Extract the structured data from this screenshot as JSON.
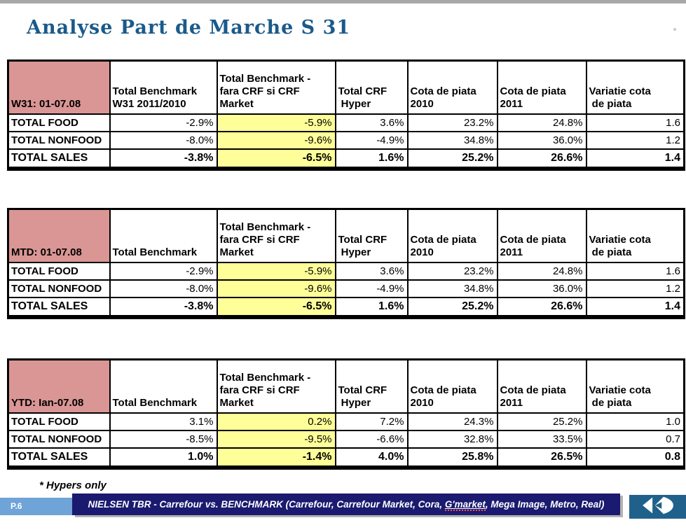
{
  "slide": {
    "title": "Analyse Part de Marche S 31",
    "footnote": "* Hypers only"
  },
  "footer": {
    "page_label": "P.6",
    "banner_prefix": "NIELSEN TBR - Carrefour vs. BENCHMARK (Carrefour, Carrefour Market, Cora, ",
    "banner_highlight": "G'market",
    "banner_suffix": ", Mega Image, Metro, Real)"
  },
  "colors": {
    "title_blue": "#1A5A8A",
    "header_pink": "#D99694",
    "highlight_yellow": "#FFFF99",
    "banner_navy": "#1A1A70",
    "page_bar_blue": "#6FA4D8",
    "logo_bar_blue": "#20618C"
  },
  "tables": [
    {
      "period_label": "W31: 01-07.08",
      "column_headers": [
        "Total Benchmark\nW31 2011/2010",
        "Total Benchmark -\nfara CRF si CRF\nMarket",
        "Total CRF\n Hyper",
        "Cota de piata\n2010",
        "Cota de piata\n2011",
        "Variatie cota\n de piata"
      ],
      "rows": [
        {
          "label": "TOTAL FOOD",
          "values": [
            "-2.9%",
            "-5.9%",
            "3.6%",
            "23.2%",
            "24.8%",
            "1.6"
          ],
          "bold": false
        },
        {
          "label": "TOTAL NONFOOD",
          "values": [
            "-8.0%",
            "-9.6%",
            "-4.9%",
            "34.8%",
            "36.0%",
            "1.2"
          ],
          "bold": false
        },
        {
          "label": "TOTAL SALES",
          "values": [
            "-3.8%",
            "-6.5%",
            "1.6%",
            "25.2%",
            "26.6%",
            "1.4"
          ],
          "bold": true
        }
      ]
    },
    {
      "period_label": "MTD: 01-07.08",
      "column_headers": [
        "Total Benchmark",
        "Total Benchmark -\nfara CRF si CRF\nMarket",
        "Total CRF\n Hyper",
        "Cota de piata\n2010",
        "Cota de piata\n2011",
        "Variatie cota\n de piata"
      ],
      "rows": [
        {
          "label": "TOTAL FOOD",
          "values": [
            "-2.9%",
            "-5.9%",
            "3.6%",
            "23.2%",
            "24.8%",
            "1.6"
          ],
          "bold": false
        },
        {
          "label": "TOTAL NONFOOD",
          "values": [
            "-8.0%",
            "-9.6%",
            "-4.9%",
            "34.8%",
            "36.0%",
            "1.2"
          ],
          "bold": false
        },
        {
          "label": "TOTAL SALES",
          "values": [
            "-3.8%",
            "-6.5%",
            "1.6%",
            "25.2%",
            "26.6%",
            "1.4"
          ],
          "bold": true
        }
      ]
    },
    {
      "period_label": "YTD: Ian-07.08",
      "column_headers": [
        "Total Benchmark",
        "Total Benchmark -\nfara CRF si CRF\nMarket",
        "Total CRF\n Hyper",
        "Cota de piata\n2010",
        "Cota de piata\n2011",
        "Variatie cota\n de piata"
      ],
      "rows": [
        {
          "label": "TOTAL FOOD",
          "values": [
            "3.1%",
            "0.2%",
            "7.2%",
            "24.3%",
            "25.2%",
            "1.0"
          ],
          "bold": false
        },
        {
          "label": "TOTAL NONFOOD",
          "values": [
            "-8.5%",
            "-9.5%",
            "-6.6%",
            "32.8%",
            "33.5%",
            "0.7"
          ],
          "bold": false
        },
        {
          "label": "TOTAL SALES",
          "values": [
            "1.0%",
            "-1.4%",
            "4.0%",
            "25.8%",
            "26.5%",
            "0.8"
          ],
          "bold": true
        }
      ]
    }
  ]
}
